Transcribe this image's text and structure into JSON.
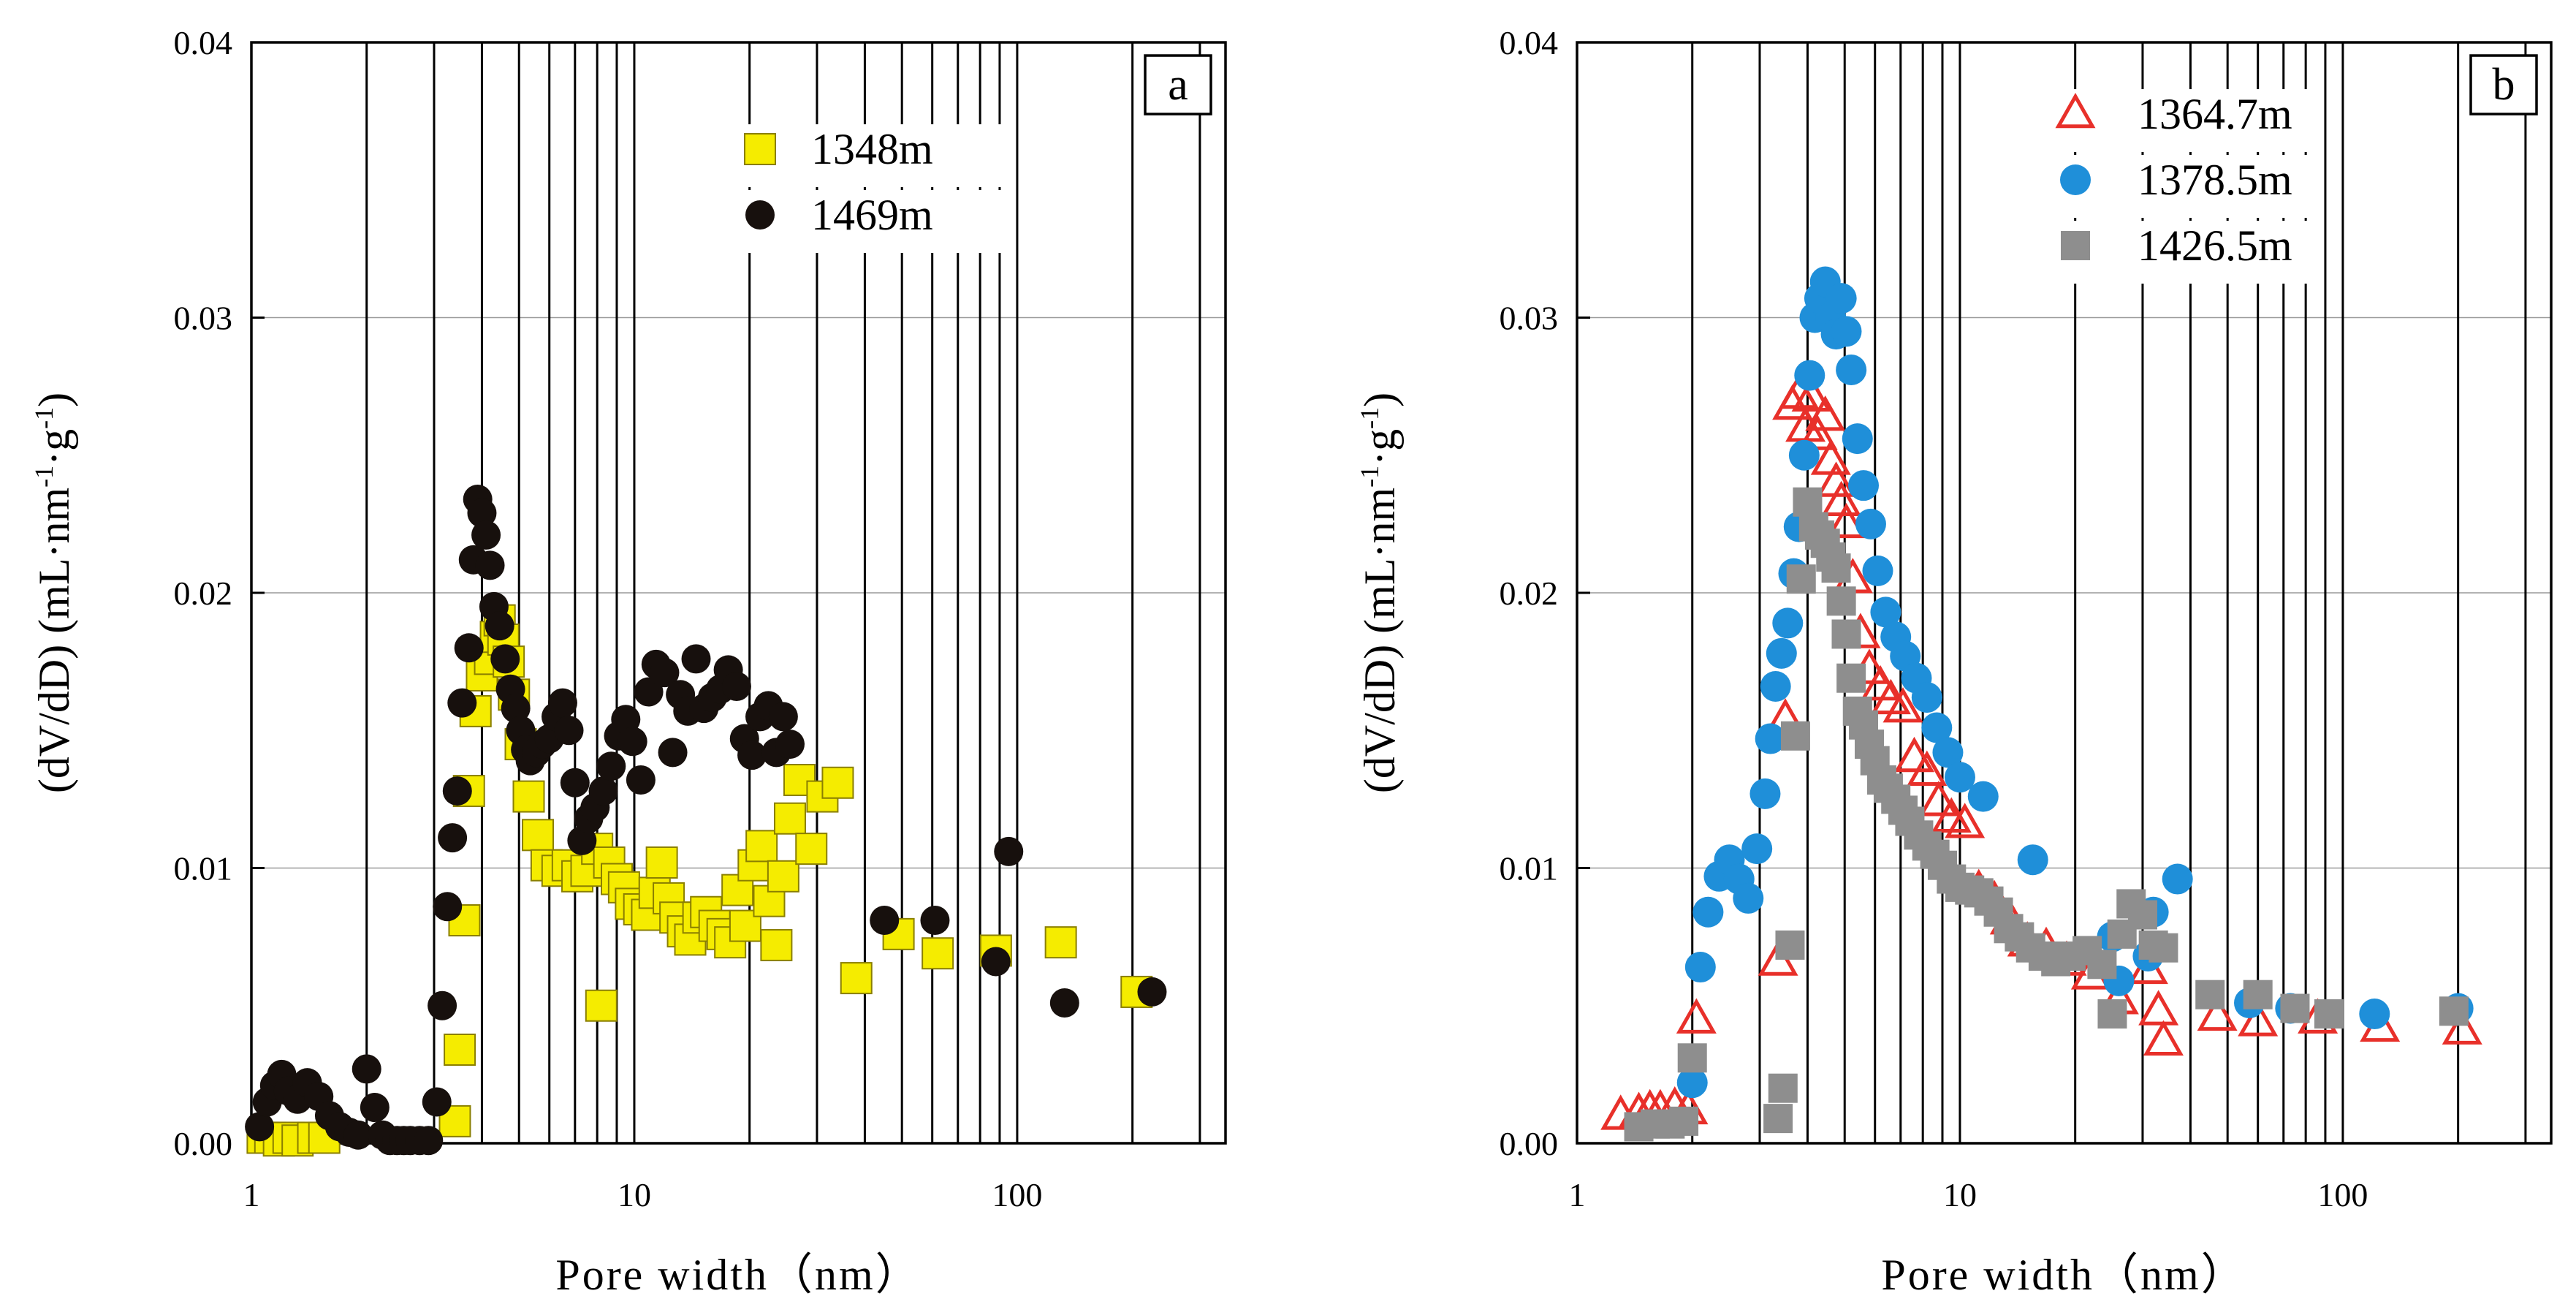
{
  "chart_data": [
    {
      "type": "scatter",
      "panel": "a",
      "xscale": "log",
      "xlim": [
        1,
        350
      ],
      "ylim": [
        0,
        0.04
      ],
      "xlabel": "Pore width（nm）",
      "ylabel": "(dV/dD)",
      "ylabel_unit_parts": [
        "(mL·nm",
        "-1",
        "·g",
        "-1",
        ")"
      ],
      "xtick_labels": [
        "1",
        "10",
        "100"
      ],
      "xticks": [
        1,
        10,
        100
      ],
      "ytick_labels": [
        "0.00",
        "0.01",
        "0.02",
        "0.03",
        "0.04"
      ],
      "yticks": [
        0,
        0.01,
        0.02,
        0.03,
        0.04
      ],
      "legend_position": "top-center",
      "colors": {
        "s1348": "#f5ec00",
        "s1469": "#17100d",
        "edge": "#8a7f00"
      },
      "series": [
        {
          "name": "1348m",
          "marker": "square",
          "x": [
            1.07,
            1.12,
            1.18,
            1.25,
            1.32,
            1.45,
            1.55,
            3.4,
            3.5,
            3.6,
            3.7,
            3.85,
            4.0,
            4.2,
            4.35,
            4.45,
            4.55,
            4.7,
            4.85,
            5.05,
            5.3,
            5.6,
            5.9,
            6.3,
            6.7,
            7.1,
            7.5,
            8.0,
            8.2,
            8.6,
            9.0,
            9.4,
            9.8,
            10.3,
            10.8,
            11.3,
            11.8,
            12.3,
            12.8,
            13.4,
            14.0,
            14.7,
            15.4,
            16.2,
            17.0,
            17.8,
            18.6,
            19.5,
            20.5,
            21.5,
            22.5,
            23.5,
            24.5,
            25.5,
            27.0,
            29.0,
            31.0,
            34.0,
            38.0,
            49.0,
            62.0,
            88.0,
            130.0,
            205.0
          ],
          "y": [
            0.0002,
            0.0002,
            0.0001,
            0.0002,
            0.0001,
            0.0002,
            0.0002,
            0.0008,
            0.0034,
            0.0081,
            0.0128,
            0.0157,
            0.017,
            0.0176,
            0.0184,
            0.019,
            0.0183,
            0.0175,
            0.0163,
            0.0145,
            0.0126,
            0.0112,
            0.0101,
            0.0099,
            0.0101,
            0.0097,
            0.0099,
            0.0107,
            0.005,
            0.0102,
            0.0096,
            0.0093,
            0.0087,
            0.0085,
            0.0083,
            0.0091,
            0.0102,
            0.0089,
            0.0082,
            0.0077,
            0.0074,
            0.0082,
            0.0084,
            0.0079,
            0.0076,
            0.0073,
            0.0092,
            0.0079,
            0.0101,
            0.0108,
            0.0088,
            0.0072,
            0.0097,
            0.0118,
            0.0132,
            0.0107,
            0.0126,
            0.0131,
            0.006,
            0.0076,
            0.0069,
            0.007,
            0.0073,
            0.0055
          ]
        },
        {
          "name": "1469m",
          "marker": "circle",
          "x": [
            1.05,
            1.1,
            1.15,
            1.2,
            1.25,
            1.32,
            1.4,
            1.5,
            1.6,
            1.7,
            1.8,
            1.9,
            2.0,
            2.1,
            2.2,
            2.3,
            2.4,
            2.5,
            2.6,
            2.75,
            2.9,
            3.05,
            3.15,
            3.25,
            3.35,
            3.45,
            3.55,
            3.7,
            3.8,
            3.9,
            4.0,
            4.1,
            4.2,
            4.3,
            4.45,
            4.6,
            4.75,
            4.9,
            5.05,
            5.2,
            5.35,
            5.55,
            5.75,
            6.0,
            6.25,
            6.5,
            6.75,
            7.0,
            7.3,
            7.6,
            7.9,
            8.3,
            8.7,
            9.1,
            9.5,
            9.9,
            10.4,
            10.9,
            11.4,
            12.0,
            12.6,
            13.2,
            13.8,
            14.5,
            15.2,
            16.0,
            16.8,
            17.6,
            18.5,
            19.4,
            20.3,
            21.3,
            22.4,
            23.5,
            24.5,
            25.5,
            45.0,
            61.0,
            88.0,
            95.0,
            133.0,
            225.0
          ],
          "y": [
            0.0006,
            0.0015,
            0.0021,
            0.0025,
            0.0019,
            0.0016,
            0.0022,
            0.0017,
            0.001,
            0.0006,
            0.0004,
            0.0003,
            0.0027,
            0.0013,
            0.0003,
            0.0001,
            0.0001,
            0.0001,
            0.0001,
            0.0001,
            0.0001,
            0.0015,
            0.005,
            0.0086,
            0.0111,
            0.0128,
            0.016,
            0.018,
            0.0212,
            0.0234,
            0.0229,
            0.0221,
            0.021,
            0.0195,
            0.0188,
            0.0176,
            0.0165,
            0.0158,
            0.015,
            0.0143,
            0.0139,
            0.0142,
            0.0145,
            0.0147,
            0.0155,
            0.016,
            0.015,
            0.0131,
            0.011,
            0.0118,
            0.0122,
            0.0128,
            0.0137,
            0.0148,
            0.0154,
            0.0146,
            0.0132,
            0.0164,
            0.0174,
            0.0171,
            0.0142,
            0.0163,
            0.0157,
            0.0176,
            0.0158,
            0.0162,
            0.0165,
            0.0172,
            0.0166,
            0.0147,
            0.0141,
            0.0155,
            0.0159,
            0.0142,
            0.0155,
            0.0145,
            0.0081,
            0.0081,
            0.0066,
            0.0106,
            0.0051,
            0.0055
          ]
        }
      ]
    },
    {
      "type": "scatter",
      "panel": "b",
      "xscale": "log",
      "xlim": [
        1,
        350
      ],
      "ylim": [
        0,
        0.04
      ],
      "xlabel": "Pore width（nm）",
      "ylabel": "(dV/dD)",
      "ylabel_unit_parts": [
        "(mL·nm",
        "-1",
        "·g",
        "-1",
        ")"
      ],
      "xtick_labels": [
        "1",
        "10",
        "100"
      ],
      "xticks": [
        1,
        10,
        100
      ],
      "ytick_labels": [
        "0.00",
        "0.01",
        "0.02",
        "0.03",
        "0.04"
      ],
      "yticks": [
        0,
        0.01,
        0.02,
        0.03,
        0.04
      ],
      "legend_position": "top-left",
      "colors": {
        "s1364": "#e8302a",
        "s1378": "#1f8fd9",
        "s1426": "#8e8e8e"
      },
      "series": [
        {
          "name": "1364.7m",
          "marker": "triangle-open",
          "x": [
            1.3,
            1.45,
            1.55,
            1.65,
            1.8,
            1.95,
            2.05,
            3.35,
            3.5,
            3.65,
            3.8,
            3.95,
            4.1,
            4.25,
            4.45,
            4.6,
            4.75,
            4.9,
            5.05,
            5.25,
            5.5,
            5.8,
            6.2,
            6.6,
            7.1,
            7.6,
            8.2,
            8.8,
            9.5,
            10.3,
            11.2,
            12.3,
            13.5,
            15.0,
            16.8,
            19.0,
            22.0,
            26.0,
            31.0,
            33.0,
            34.0,
            47.0,
            60.0,
            86.0,
            125.0,
            205.0
          ],
          "y": [
            0.001,
            0.0011,
            0.0012,
            0.0012,
            0.0013,
            0.0012,
            0.0045,
            0.0066,
            0.0154,
            0.0268,
            0.0272,
            0.026,
            0.0271,
            0.0257,
            0.0264,
            0.0248,
            0.024,
            0.0233,
            0.0225,
            0.0205,
            0.0185,
            0.0172,
            0.0166,
            0.0161,
            0.0158,
            0.014,
            0.0135,
            0.0124,
            0.0118,
            0.0116,
            0.0092,
            0.0088,
            0.0081,
            0.0073,
            0.0071,
            0.0066,
            0.0061,
            0.0052,
            0.0063,
            0.0048,
            0.0037,
            0.0046,
            0.0044,
            0.0045,
            0.0042,
            0.0041
          ]
        },
        {
          "name": "1378.5m",
          "marker": "circle",
          "x": [
            2.0,
            2.1,
            2.2,
            2.35,
            2.5,
            2.65,
            2.8,
            2.95,
            3.1,
            3.2,
            3.3,
            3.42,
            3.55,
            3.68,
            3.8,
            3.92,
            4.05,
            4.18,
            4.3,
            4.45,
            4.6,
            4.75,
            4.9,
            5.05,
            5.2,
            5.4,
            5.6,
            5.85,
            6.1,
            6.4,
            6.8,
            7.2,
            7.7,
            8.2,
            8.7,
            9.3,
            10.0,
            11.5,
            15.5,
            25.0,
            26.0,
            31.0,
            32.0,
            37.0,
            57.0,
            73.0,
            121.0,
            200.0
          ],
          "y": [
            0.0022,
            0.0064,
            0.0084,
            0.0097,
            0.0103,
            0.0096,
            0.0089,
            0.0107,
            0.0127,
            0.0147,
            0.0166,
            0.0178,
            0.0189,
            0.0207,
            0.0224,
            0.025,
            0.0279,
            0.03,
            0.0307,
            0.0313,
            0.03,
            0.0294,
            0.0307,
            0.0295,
            0.0281,
            0.0256,
            0.0239,
            0.0225,
            0.0208,
            0.0193,
            0.0184,
            0.0177,
            0.0169,
            0.0162,
            0.0151,
            0.0142,
            0.0133,
            0.0126,
            0.0103,
            0.0075,
            0.0059,
            0.0068,
            0.0084,
            0.0096,
            0.0051,
            0.0049,
            0.0047,
            0.0049
          ]
        },
        {
          "name": "1426.5m",
          "marker": "square",
          "x": [
            1.45,
            1.6,
            1.75,
            1.9,
            2.0,
            3.35,
            3.45,
            3.6,
            3.72,
            3.85,
            4.0,
            4.15,
            4.3,
            4.45,
            4.6,
            4.75,
            4.9,
            5.05,
            5.2,
            5.4,
            5.6,
            5.8,
            6.0,
            6.25,
            6.5,
            6.8,
            7.1,
            7.4,
            7.8,
            8.2,
            8.6,
            9.0,
            9.5,
            10.0,
            10.6,
            11.2,
            11.9,
            12.6,
            13.4,
            14.3,
            15.3,
            16.5,
            17.8,
            19.5,
            21.5,
            23.5,
            25.0,
            26.5,
            28.0,
            30.0,
            32.0,
            34.0,
            45.0,
            60.0,
            75.0,
            92.0,
            195.0
          ],
          "y": [
            0.0006,
            0.0007,
            0.0007,
            0.0008,
            0.0031,
            0.0009,
            0.002,
            0.0072,
            0.0148,
            0.0205,
            0.0233,
            0.0224,
            0.0221,
            0.0218,
            0.0213,
            0.0209,
            0.0197,
            0.0185,
            0.0169,
            0.0157,
            0.0152,
            0.0145,
            0.0139,
            0.0132,
            0.0129,
            0.0125,
            0.0121,
            0.0117,
            0.0112,
            0.0108,
            0.0105,
            0.0101,
            0.0096,
            0.0093,
            0.0092,
            0.0091,
            0.0088,
            0.0084,
            0.0078,
            0.0075,
            0.0071,
            0.0068,
            0.0066,
            0.0068,
            0.007,
            0.0065,
            0.0047,
            0.0076,
            0.0087,
            0.0083,
            0.0072,
            0.0071,
            0.0054,
            0.0054,
            0.0049,
            0.0047,
            0.0048
          ]
        }
      ]
    }
  ]
}
